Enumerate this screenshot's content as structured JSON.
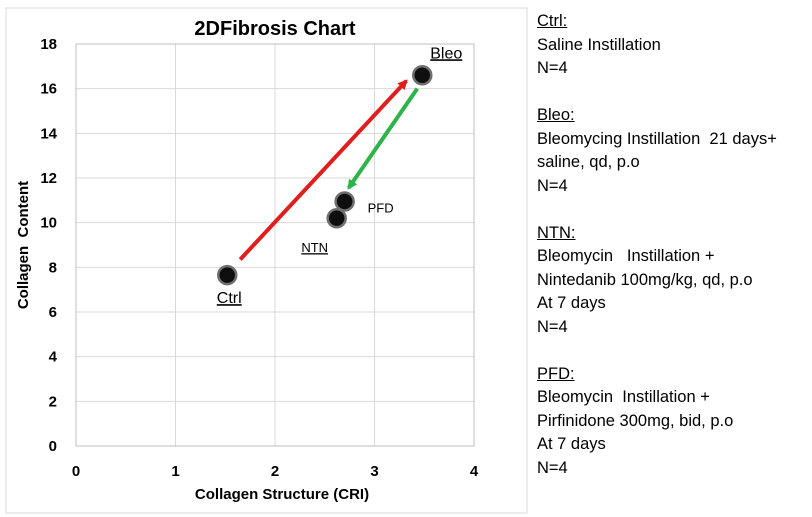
{
  "chart_data": {
    "type": "scatter",
    "title": "2DFibrosis Chart",
    "xlabel": "Collagen Structure (CRI)",
    "ylabel": "Collagen  Content",
    "xlim": [
      0,
      4
    ],
    "ylim": [
      0,
      18
    ],
    "x_ticks": [
      0,
      1,
      2,
      3,
      4
    ],
    "y_ticks": [
      0,
      2,
      4,
      6,
      8,
      10,
      12,
      14,
      16,
      18
    ],
    "grid": true,
    "points": [
      {
        "label": "Ctrl",
        "x": 1.52,
        "y": 7.65
      },
      {
        "label": "Bleo",
        "x": 3.48,
        "y": 16.6
      },
      {
        "label": "NTN",
        "x": 2.62,
        "y": 10.2
      },
      {
        "label": "PFD",
        "x": 2.7,
        "y": 10.95
      }
    ],
    "arrows": [
      {
        "from": [
          1.65,
          8.35
        ],
        "to": [
          3.32,
          16.35
        ],
        "color": "#e01e1e"
      },
      {
        "from": [
          3.43,
          16.0
        ],
        "to": [
          2.74,
          11.55
        ],
        "color": "#2db34a"
      }
    ],
    "marker_color": "#0f0f0f"
  },
  "legend": [
    {
      "head": "Ctrl:",
      "lines": [
        "Saline Instillation",
        "N=4"
      ]
    },
    {
      "head": "Bleo:",
      "lines": [
        "Bleomycing Instillation  21 days+",
        "saline, qd, p.o",
        "N=4"
      ]
    },
    {
      "head": "NTN:",
      "lines": [
        "Bleomycin   Instillation +",
        "Nintedanib 100mg/kg, qd, p.o",
        "At 7 days",
        "N=4"
      ]
    },
    {
      "head": "PFD:",
      "lines": [
        "Bleomycin  Instillation +",
        "Pirfinidone 300mg, bid, p.o",
        "At 7 days",
        "N=4"
      ]
    }
  ]
}
